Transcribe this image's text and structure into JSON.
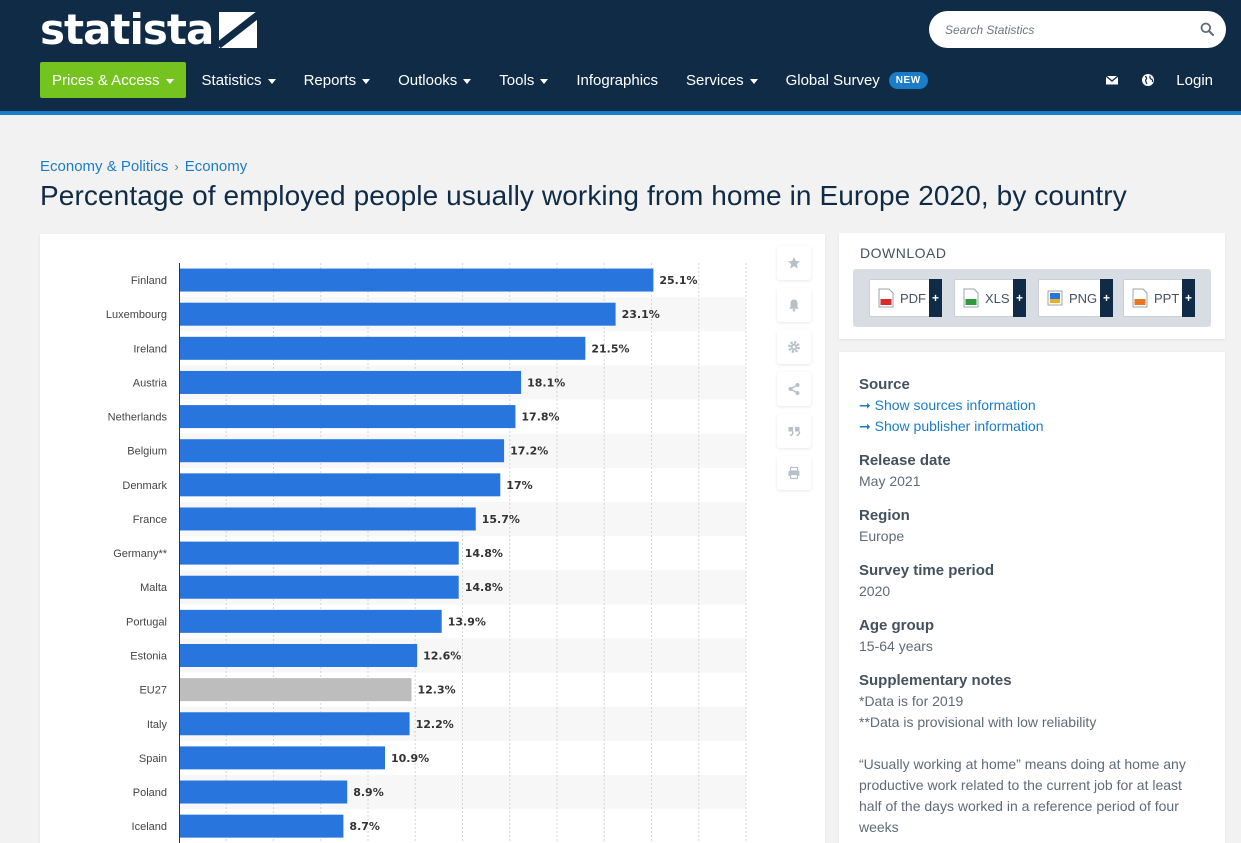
{
  "header": {
    "logo_text": "statista",
    "search_placeholder": "Search Statistics",
    "nav": [
      {
        "label": "Prices & Access",
        "caret": true
      },
      {
        "label": "Statistics",
        "caret": true
      },
      {
        "label": "Reports",
        "caret": true
      },
      {
        "label": "Outlooks",
        "caret": true
      },
      {
        "label": "Tools",
        "caret": true
      },
      {
        "label": "Infographics",
        "caret": false
      },
      {
        "label": "Services",
        "caret": true
      },
      {
        "label": "Global Survey",
        "caret": false
      }
    ],
    "new_badge": "NEW",
    "login": "Login",
    "icons": [
      "mail-icon",
      "globe-icon"
    ],
    "colors": {
      "bg": "#0f2b46",
      "accent": "#1b7cc7",
      "green": "#74c31f"
    }
  },
  "breadcrumb": {
    "items": [
      "Economy & Politics",
      "Economy"
    ],
    "separator": "›"
  },
  "page_title": "Percentage of employed people usually working from home in Europe 2020, by country",
  "toolbar": [
    "star-icon",
    "bell-icon",
    "gear-icon",
    "share-icon",
    "quote-icon",
    "print-icon"
  ],
  "download": {
    "title": "DOWNLOAD",
    "buttons": [
      "PDF",
      "XLS",
      "PNG",
      "PPT"
    ],
    "plus": "+"
  },
  "info": {
    "source_heading": "Source",
    "source_link": "➞ Show sources information",
    "publisher_link": "➞ Show publisher information",
    "release_heading": "Release date",
    "release_value": "May 2021",
    "region_heading": "Region",
    "region_value": "Europe",
    "period_heading": "Survey time period",
    "period_value": "2020",
    "age_heading": "Age group",
    "age_value": "15-64 years",
    "notes_heading": "Supplementary notes",
    "note_1": "*Data is for 2019",
    "note_2": "**Data is provisional with low reliability",
    "note_3": "“Usually working at home” means doing at home any productive work related to the current job for at least half of the days worked in a reference period of four weeks"
  },
  "chart_data": {
    "type": "bar",
    "orientation": "horizontal",
    "categories": [
      "Finland",
      "Luxembourg",
      "Ireland",
      "Austria",
      "Netherlands",
      "Belgium",
      "Denmark",
      "France",
      "Germany**",
      "Malta",
      "Portugal",
      "Estonia",
      "EU27",
      "Italy",
      "Spain",
      "Poland",
      "Iceland"
    ],
    "values": [
      25.1,
      23.1,
      21.5,
      18.1,
      17.8,
      17.2,
      17,
      15.7,
      14.8,
      14.8,
      13.9,
      12.6,
      12.3,
      12.2,
      10.9,
      8.9,
      8.7
    ],
    "value_labels": [
      "25.1%",
      "23.1%",
      "21.5%",
      "18.1%",
      "17.8%",
      "17.2%",
      "17%",
      "15.7%",
      "14.8%",
      "14.8%",
      "13.9%",
      "12.6%",
      "12.3%",
      "12.2%",
      "10.9%",
      "8.9%",
      "8.7%"
    ],
    "highlight": "EU27",
    "bar_color": "#2876dd",
    "highlight_color": "#bdbdbd",
    "xlim": [
      0,
      30
    ],
    "grid": true
  }
}
